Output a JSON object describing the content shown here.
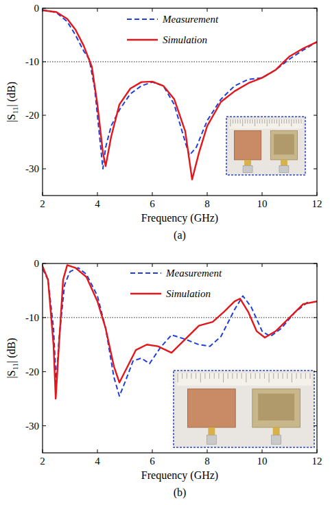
{
  "chart_data": [
    {
      "type": "line",
      "caption": "(a)",
      "x_label": "Frequency (GHz)",
      "y_label": "|S11| (dB)",
      "xlim": [
        2,
        12
      ],
      "xticks": [
        2,
        4,
        6,
        8,
        10,
        12
      ],
      "ylim": [
        -35,
        0
      ],
      "yticks": [
        0,
        -10,
        -20,
        -30
      ],
      "threshold": -10,
      "grid": false,
      "legend": "top",
      "series": [
        {
          "name": "Measurement",
          "color": "#1f3fdc",
          "line_style": "dashed",
          "x": [
            2.0,
            2.5,
            2.9,
            3.2,
            3.5,
            3.7,
            3.9,
            4.1,
            4.2,
            4.3,
            4.5,
            4.8,
            5.2,
            5.6,
            6.0,
            6.4,
            6.8,
            7.2,
            7.35,
            7.6,
            8.0,
            8.5,
            9.0,
            9.5,
            10.0,
            10.5,
            11.0,
            11.5,
            12.0
          ],
          "values": [
            -0.3,
            -0.8,
            -2.5,
            -5,
            -8,
            -9.5,
            -15,
            -25,
            -30,
            -26,
            -22,
            -19,
            -16,
            -14.5,
            -13.8,
            -14.5,
            -18,
            -25,
            -27.5,
            -26,
            -21,
            -17,
            -14.5,
            -13.3,
            -13,
            -11.5,
            -9.5,
            -7.8,
            -6.3
          ]
        },
        {
          "name": "Simulation",
          "color": "#e3161b",
          "line_style": "solid",
          "x": [
            2.0,
            2.5,
            2.9,
            3.2,
            3.5,
            3.8,
            4.0,
            4.2,
            4.3,
            4.5,
            4.8,
            5.2,
            5.6,
            6.0,
            6.4,
            6.8,
            7.2,
            7.45,
            7.7,
            8.0,
            8.5,
            9.0,
            9.5,
            10.0,
            10.5,
            11.0,
            11.5,
            12.0
          ],
          "values": [
            -0.4,
            -0.7,
            -2.0,
            -4,
            -7,
            -11,
            -18,
            -27,
            -29.5,
            -24,
            -18,
            -15,
            -13.8,
            -13.7,
            -14.5,
            -17,
            -23,
            -32,
            -27,
            -22,
            -17.5,
            -15.5,
            -14,
            -13,
            -11.5,
            -9,
            -7.5,
            -6.3
          ]
        }
      ]
    },
    {
      "type": "line",
      "caption": "(b)",
      "x_label": "Frequency (GHz)",
      "y_label": "|S11| (dB)",
      "xlim": [
        2,
        12
      ],
      "xticks": [
        2,
        4,
        6,
        8,
        10,
        12
      ],
      "ylim": [
        -35,
        0
      ],
      "yticks": [
        0,
        -10,
        -20,
        -30
      ],
      "threshold": -10,
      "grid": false,
      "legend": "top",
      "series": [
        {
          "name": "Measurement",
          "color": "#1f3fdc",
          "line_style": "dashed",
          "x": [
            2.0,
            2.2,
            2.4,
            2.5,
            2.6,
            2.8,
            3.0,
            3.3,
            3.6,
            4.0,
            4.3,
            4.6,
            4.8,
            5.0,
            5.3,
            5.6,
            5.9,
            6.3,
            6.7,
            7.2,
            7.7,
            8.1,
            8.5,
            9.0,
            9.3,
            9.6,
            10.0,
            10.3,
            10.7,
            11.2,
            11.7
          ],
          "values": [
            -1,
            -3,
            -12,
            -22,
            -14,
            -4,
            -1.5,
            -0.8,
            -2,
            -6,
            -12,
            -21,
            -24.5,
            -22,
            -18,
            -17.5,
            -18.5,
            -15.5,
            -13.2,
            -14,
            -15,
            -15.3,
            -13.5,
            -8.5,
            -6,
            -8,
            -12.5,
            -13.5,
            -12,
            -9,
            -7
          ]
        },
        {
          "name": "Simulation",
          "color": "#e3161b",
          "line_style": "solid",
          "x": [
            2.0,
            2.2,
            2.4,
            2.48,
            2.6,
            2.75,
            2.9,
            3.2,
            3.6,
            4.0,
            4.3,
            4.6,
            4.8,
            5.0,
            5.4,
            5.8,
            6.2,
            6.7,
            7.2,
            7.7,
            8.2,
            8.6,
            9.0,
            9.2,
            9.5,
            9.8,
            10.1,
            10.5,
            11.0,
            11.5,
            12.0
          ],
          "values": [
            -0.5,
            -3,
            -15,
            -25,
            -15,
            -3,
            -0.3,
            -0.8,
            -2.5,
            -7,
            -12,
            -19,
            -22,
            -20,
            -16,
            -15,
            -15.3,
            -16.5,
            -14,
            -11.5,
            -10.8,
            -9,
            -7,
            -6.5,
            -9,
            -12.5,
            -13.7,
            -12.5,
            -10,
            -7.5,
            -7
          ]
        }
      ]
    }
  ]
}
